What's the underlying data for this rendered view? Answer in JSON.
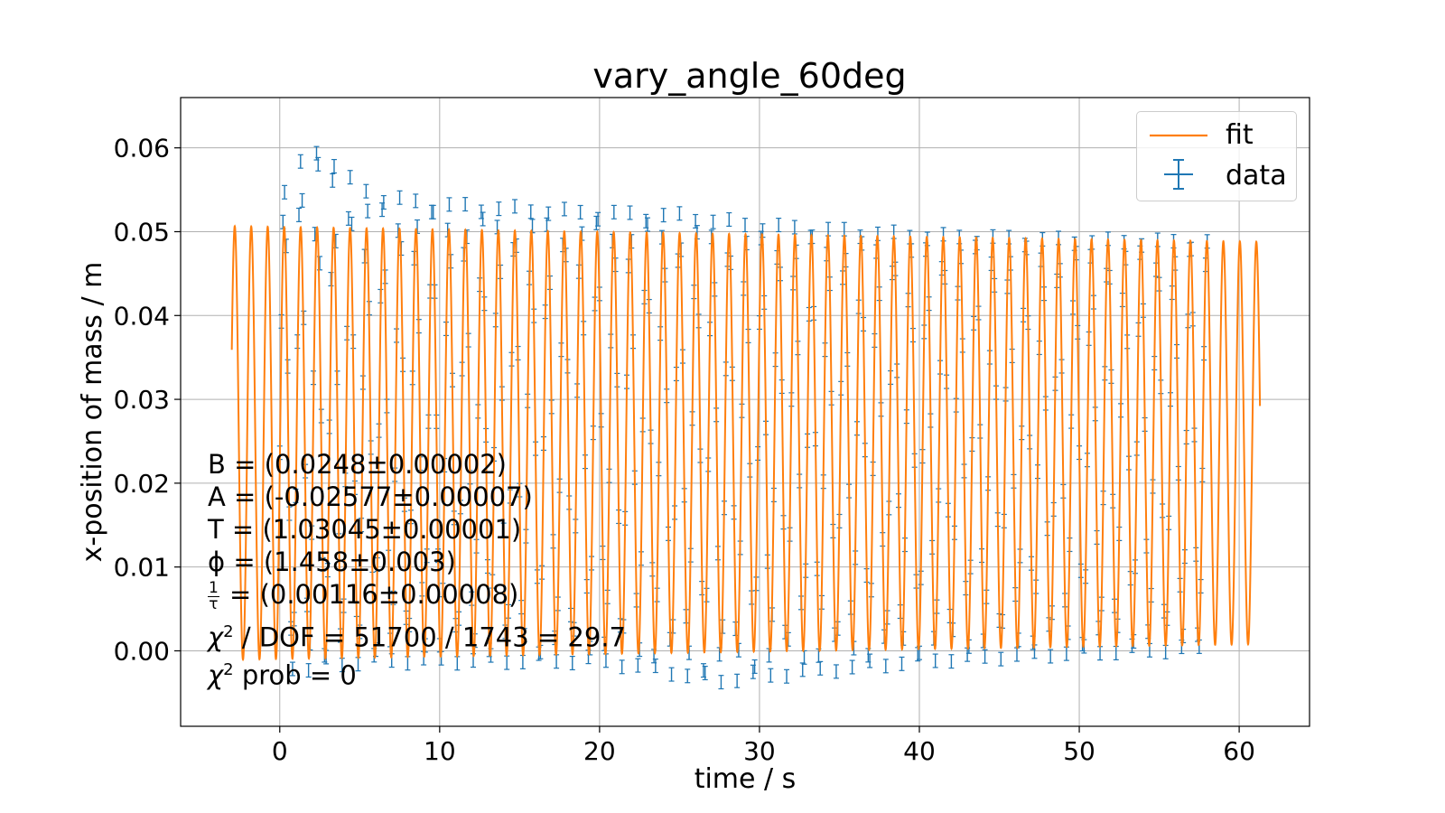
{
  "chart_data": {
    "type": "scatter",
    "title": "vary_angle_60deg",
    "xlabel": "time / s",
    "ylabel": "x-position of mass / m",
    "xlim": [
      -6.2,
      64.4
    ],
    "ylim": [
      -0.009,
      0.066
    ],
    "xticks": [
      0,
      10,
      20,
      30,
      40,
      50,
      60
    ],
    "xtick_labels": [
      "0",
      "10",
      "20",
      "30",
      "40",
      "50",
      "60"
    ],
    "yticks": [
      0.0,
      0.01,
      0.02,
      0.03,
      0.04,
      0.05,
      0.06
    ],
    "ytick_labels": [
      "0.00",
      "0.01",
      "0.02",
      "0.03",
      "0.04",
      "0.05",
      "0.06"
    ],
    "grid": true,
    "legend": {
      "position": "upper-right",
      "entries": [
        "fit",
        "data"
      ]
    },
    "colors": {
      "fit": "#ff7f0e",
      "data": "#1f77b4"
    },
    "series": [
      {
        "name": "fit",
        "kind": "line",
        "model": "B + A*exp(-t/tau)*cos(2*pi*t/T + phi)",
        "params": {
          "B": 0.0248,
          "A": -0.02577,
          "T": 1.03045,
          "phi": 1.458,
          "inv_tau": 0.00116
        },
        "t_range": [
          -3.0,
          61.3
        ]
      },
      {
        "name": "data",
        "kind": "errorbar",
        "t_range": [
          0.0,
          58.0
        ],
        "dt": 0.1,
        "y_error": 0.0008,
        "upper_envelope": [
          [
            0,
            0.052
          ],
          [
            0.5,
            0.057
          ],
          [
            2.5,
            0.0605
          ],
          [
            4,
            0.057
          ],
          [
            6,
            0.0545
          ],
          [
            10,
            0.0535
          ],
          [
            15,
            0.053
          ],
          [
            20,
            0.0525
          ],
          [
            25,
            0.0522
          ],
          [
            30,
            0.051
          ],
          [
            40,
            0.0498
          ],
          [
            50,
            0.0492
          ],
          [
            58,
            0.049
          ]
        ],
        "lower_envelope": [
          [
            0,
            0.001
          ],
          [
            1,
            -0.003
          ],
          [
            3,
            -0.002
          ],
          [
            6,
            -0.0015
          ],
          [
            10,
            -0.0015
          ],
          [
            20,
            -0.0015
          ],
          [
            25,
            -0.003
          ],
          [
            27,
            -0.004
          ],
          [
            32,
            -0.003
          ],
          [
            40,
            -0.0015
          ],
          [
            50,
            -0.0005
          ],
          [
            58,
            0.0
          ]
        ]
      }
    ],
    "annotations": [
      "B = (0.0248±0.00002)",
      "A = (-0.02577±0.00007)",
      "T = (1.03045±0.00001)",
      "ϕ = (1.458±0.003)",
      "1/τ = (0.00116±0.00008)",
      "χ² / DOF = 51700 / 1743 = 29.7",
      "χ² prob = 0"
    ]
  },
  "stats": {
    "B": "B = (0.0248±0.00002)",
    "A": "A = (-0.02577±0.00007)",
    "T": "T = (1.03045±0.00001)",
    "phi": "ϕ = (1.458±0.003)",
    "tau_num": "1",
    "tau_den": "τ",
    "tau_rest": " = (0.00116±0.00008)",
    "chi_sym": "χ",
    "chi_sup": "2",
    "chi_dof_rest": " / DOF = 51700 / 1743 = 29.7",
    "chi_prob_rest": " prob = 0"
  },
  "legend": {
    "fit": "fit",
    "data": "data"
  }
}
